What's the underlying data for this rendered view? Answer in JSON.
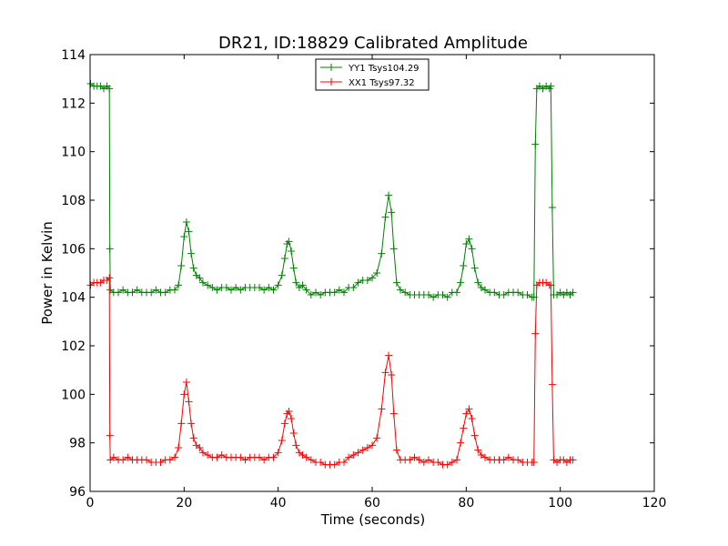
{
  "chart_data": {
    "type": "line",
    "title": "DR21, ID:18829 Calibrated Amplitude",
    "xlabel": "Time (seconds)",
    "ylabel": "Power in Kelvin",
    "xlim": [
      0,
      120
    ],
    "ylim": [
      96,
      114
    ],
    "xticks": [
      "0",
      "20",
      "40",
      "60",
      "80",
      "100",
      "120"
    ],
    "yticks": [
      "96",
      "98",
      "100",
      "102",
      "104",
      "106",
      "108",
      "110",
      "112",
      "114"
    ],
    "grid": false,
    "legend_position": "top-center",
    "marker": "plus",
    "series": [
      {
        "name": "YY1 Tsys104.29",
        "color": "#008000",
        "points": [
          [
            0.1,
            112.8
          ],
          [
            0.8,
            112.7
          ],
          [
            1.5,
            112.7
          ],
          [
            2.2,
            112.7
          ],
          [
            2.9,
            112.6
          ],
          [
            3.6,
            112.7
          ],
          [
            4.1,
            112.6
          ],
          [
            4.2,
            106.0
          ],
          [
            4.3,
            104.3
          ],
          [
            5.0,
            104.2
          ],
          [
            6.0,
            104.2
          ],
          [
            7.0,
            104.3
          ],
          [
            8.0,
            104.2
          ],
          [
            9.0,
            104.2
          ],
          [
            10.0,
            104.3
          ],
          [
            11.0,
            104.2
          ],
          [
            12.0,
            104.2
          ],
          [
            13.0,
            104.2
          ],
          [
            14.0,
            104.3
          ],
          [
            15.0,
            104.2
          ],
          [
            16.0,
            104.2
          ],
          [
            17.0,
            104.3
          ],
          [
            18.0,
            104.3
          ],
          [
            18.8,
            104.5
          ],
          [
            19.4,
            105.3
          ],
          [
            20.0,
            106.5
          ],
          [
            20.5,
            107.1
          ],
          [
            21.0,
            106.7
          ],
          [
            21.5,
            105.8
          ],
          [
            22.0,
            105.2
          ],
          [
            22.6,
            104.9
          ],
          [
            23.3,
            104.8
          ],
          [
            24.0,
            104.6
          ],
          [
            25.0,
            104.5
          ],
          [
            26.0,
            104.4
          ],
          [
            27.0,
            104.3
          ],
          [
            28.0,
            104.4
          ],
          [
            29.0,
            104.4
          ],
          [
            30.0,
            104.3
          ],
          [
            31.0,
            104.4
          ],
          [
            32.0,
            104.3
          ],
          [
            33.0,
            104.4
          ],
          [
            34.0,
            104.4
          ],
          [
            35.0,
            104.4
          ],
          [
            36.0,
            104.4
          ],
          [
            37.0,
            104.3
          ],
          [
            38.0,
            104.4
          ],
          [
            39.0,
            104.3
          ],
          [
            40.0,
            104.5
          ],
          [
            40.8,
            104.9
          ],
          [
            41.4,
            105.6
          ],
          [
            41.9,
            106.2
          ],
          [
            42.3,
            106.3
          ],
          [
            42.8,
            105.9
          ],
          [
            43.3,
            105.2
          ],
          [
            43.8,
            104.6
          ],
          [
            44.5,
            104.4
          ],
          [
            45.2,
            104.5
          ],
          [
            46.0,
            104.3
          ],
          [
            47.0,
            104.1
          ],
          [
            48.0,
            104.2
          ],
          [
            49.0,
            104.1
          ],
          [
            50.0,
            104.2
          ],
          [
            51.0,
            104.2
          ],
          [
            52.0,
            104.2
          ],
          [
            53.0,
            104.3
          ],
          [
            54.0,
            104.2
          ],
          [
            55.0,
            104.4
          ],
          [
            56.0,
            104.4
          ],
          [
            57.0,
            104.6
          ],
          [
            58.0,
            104.7
          ],
          [
            59.0,
            104.7
          ],
          [
            60.0,
            104.8
          ],
          [
            61.0,
            105.0
          ],
          [
            62.0,
            105.8
          ],
          [
            62.8,
            107.3
          ],
          [
            63.5,
            108.2
          ],
          [
            64.1,
            107.5
          ],
          [
            64.6,
            106.0
          ],
          [
            65.2,
            104.6
          ],
          [
            66.0,
            104.3
          ],
          [
            67.0,
            104.2
          ],
          [
            68.0,
            104.1
          ],
          [
            69.0,
            104.1
          ],
          [
            70.0,
            104.1
          ],
          [
            71.0,
            104.1
          ],
          [
            72.0,
            104.1
          ],
          [
            73.0,
            104.0
          ],
          [
            74.0,
            104.1
          ],
          [
            75.0,
            104.1
          ],
          [
            76.0,
            104.0
          ],
          [
            77.0,
            104.2
          ],
          [
            78.0,
            104.2
          ],
          [
            78.8,
            104.6
          ],
          [
            79.4,
            105.3
          ],
          [
            80.0,
            106.2
          ],
          [
            80.6,
            106.4
          ],
          [
            81.2,
            106.0
          ],
          [
            81.8,
            105.2
          ],
          [
            82.5,
            104.6
          ],
          [
            83.2,
            104.4
          ],
          [
            84.0,
            104.3
          ],
          [
            85.0,
            104.2
          ],
          [
            86.0,
            104.2
          ],
          [
            87.0,
            104.1
          ],
          [
            88.0,
            104.1
          ],
          [
            89.0,
            104.2
          ],
          [
            90.0,
            104.2
          ],
          [
            91.0,
            104.2
          ],
          [
            92.0,
            104.1
          ],
          [
            93.0,
            104.1
          ],
          [
            94.0,
            104.0
          ],
          [
            94.4,
            104.0
          ],
          [
            94.7,
            110.3
          ],
          [
            95.0,
            112.6
          ],
          [
            95.6,
            112.7
          ],
          [
            96.3,
            112.6
          ],
          [
            97.0,
            112.7
          ],
          [
            97.7,
            112.6
          ],
          [
            98.0,
            112.7
          ],
          [
            98.3,
            107.7
          ],
          [
            98.6,
            104.1
          ],
          [
            99.3,
            104.1
          ],
          [
            100.0,
            104.2
          ],
          [
            100.7,
            104.1
          ],
          [
            101.4,
            104.2
          ],
          [
            102.1,
            104.1
          ],
          [
            102.7,
            104.2
          ]
        ]
      },
      {
        "name": "XX1 Tsys97.32",
        "color": "#ff0000",
        "points": [
          [
            0.1,
            104.5
          ],
          [
            0.8,
            104.6
          ],
          [
            1.5,
            104.6
          ],
          [
            2.2,
            104.6
          ],
          [
            2.9,
            104.7
          ],
          [
            3.6,
            104.7
          ],
          [
            4.1,
            104.8
          ],
          [
            4.2,
            98.3
          ],
          [
            4.3,
            97.3
          ],
          [
            5.0,
            97.4
          ],
          [
            6.0,
            97.3
          ],
          [
            7.0,
            97.3
          ],
          [
            8.0,
            97.4
          ],
          [
            9.0,
            97.3
          ],
          [
            10.0,
            97.3
          ],
          [
            11.0,
            97.3
          ],
          [
            12.0,
            97.3
          ],
          [
            13.0,
            97.2
          ],
          [
            14.0,
            97.2
          ],
          [
            15.0,
            97.2
          ],
          [
            16.0,
            97.3
          ],
          [
            17.0,
            97.3
          ],
          [
            18.0,
            97.4
          ],
          [
            18.8,
            97.8
          ],
          [
            19.4,
            98.8
          ],
          [
            20.0,
            100.0
          ],
          [
            20.5,
            100.5
          ],
          [
            21.0,
            99.7
          ],
          [
            21.5,
            98.8
          ],
          [
            22.0,
            98.2
          ],
          [
            22.6,
            97.9
          ],
          [
            23.3,
            97.8
          ],
          [
            24.0,
            97.6
          ],
          [
            25.0,
            97.5
          ],
          [
            26.0,
            97.4
          ],
          [
            27.0,
            97.4
          ],
          [
            28.0,
            97.5
          ],
          [
            29.0,
            97.4
          ],
          [
            30.0,
            97.4
          ],
          [
            31.0,
            97.4
          ],
          [
            32.0,
            97.4
          ],
          [
            33.0,
            97.3
          ],
          [
            34.0,
            97.4
          ],
          [
            35.0,
            97.4
          ],
          [
            36.0,
            97.4
          ],
          [
            37.0,
            97.3
          ],
          [
            38.0,
            97.4
          ],
          [
            39.0,
            97.4
          ],
          [
            40.0,
            97.6
          ],
          [
            40.8,
            98.1
          ],
          [
            41.4,
            98.8
          ],
          [
            41.9,
            99.2
          ],
          [
            42.3,
            99.3
          ],
          [
            42.8,
            99.0
          ],
          [
            43.3,
            98.4
          ],
          [
            43.8,
            97.9
          ],
          [
            44.5,
            97.6
          ],
          [
            45.2,
            97.5
          ],
          [
            46.0,
            97.4
          ],
          [
            47.0,
            97.3
          ],
          [
            48.0,
            97.2
          ],
          [
            49.0,
            97.2
          ],
          [
            50.0,
            97.1
          ],
          [
            51.0,
            97.1
          ],
          [
            52.0,
            97.1
          ],
          [
            53.0,
            97.2
          ],
          [
            54.0,
            97.2
          ],
          [
            55.0,
            97.4
          ],
          [
            56.0,
            97.5
          ],
          [
            57.0,
            97.6
          ],
          [
            58.0,
            97.7
          ],
          [
            59.0,
            97.8
          ],
          [
            60.0,
            97.9
          ],
          [
            61.0,
            98.2
          ],
          [
            62.0,
            99.4
          ],
          [
            62.8,
            100.9
          ],
          [
            63.5,
            101.6
          ],
          [
            64.1,
            100.8
          ],
          [
            64.6,
            99.2
          ],
          [
            65.2,
            97.7
          ],
          [
            66.0,
            97.3
          ],
          [
            67.0,
            97.3
          ],
          [
            68.0,
            97.3
          ],
          [
            69.0,
            97.4
          ],
          [
            70.0,
            97.3
          ],
          [
            71.0,
            97.2
          ],
          [
            72.0,
            97.3
          ],
          [
            73.0,
            97.2
          ],
          [
            74.0,
            97.2
          ],
          [
            75.0,
            97.1
          ],
          [
            76.0,
            97.1
          ],
          [
            77.0,
            97.2
          ],
          [
            78.0,
            97.3
          ],
          [
            78.8,
            98.0
          ],
          [
            79.4,
            98.6
          ],
          [
            80.0,
            99.2
          ],
          [
            80.6,
            99.4
          ],
          [
            81.2,
            99.0
          ],
          [
            81.8,
            98.3
          ],
          [
            82.5,
            97.7
          ],
          [
            83.2,
            97.5
          ],
          [
            84.0,
            97.4
          ],
          [
            85.0,
            97.3
          ],
          [
            86.0,
            97.3
          ],
          [
            87.0,
            97.3
          ],
          [
            88.0,
            97.3
          ],
          [
            89.0,
            97.4
          ],
          [
            90.0,
            97.3
          ],
          [
            91.0,
            97.3
          ],
          [
            92.0,
            97.2
          ],
          [
            93.0,
            97.2
          ],
          [
            94.0,
            97.2
          ],
          [
            94.4,
            97.2
          ],
          [
            94.7,
            102.5
          ],
          [
            95.0,
            104.5
          ],
          [
            95.6,
            104.6
          ],
          [
            96.3,
            104.6
          ],
          [
            97.0,
            104.6
          ],
          [
            97.7,
            104.5
          ],
          [
            98.0,
            104.5
          ],
          [
            98.3,
            100.4
          ],
          [
            98.6,
            97.3
          ],
          [
            99.3,
            97.2
          ],
          [
            100.0,
            97.3
          ],
          [
            100.7,
            97.3
          ],
          [
            101.4,
            97.2
          ],
          [
            102.1,
            97.3
          ],
          [
            102.7,
            97.3
          ]
        ]
      }
    ]
  }
}
